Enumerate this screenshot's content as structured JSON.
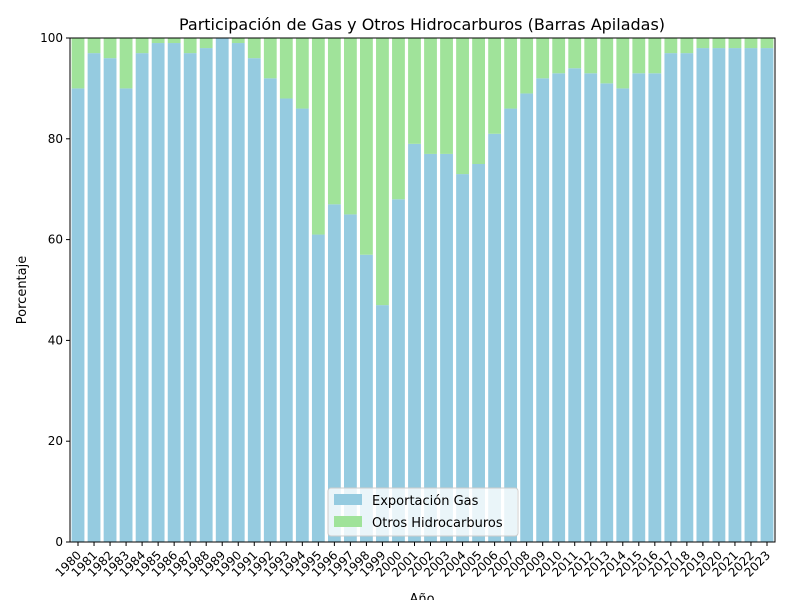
{
  "chart_data": {
    "type": "bar",
    "stacked": true,
    "title": "Participación de Gas y Otros Hidrocarburos (Barras Apiladas)",
    "xlabel": "Año",
    "ylabel": "Porcentaje",
    "ylim": [
      0,
      100
    ],
    "yticks": [
      0,
      20,
      40,
      60,
      80,
      100
    ],
    "grid": false,
    "legend_position": "bottom-center",
    "categories": [
      "1980",
      "1981",
      "1982",
      "1983",
      "1984",
      "1985",
      "1986",
      "1987",
      "1988",
      "1989",
      "1990",
      "1991",
      "1992",
      "1993",
      "1994",
      "1995",
      "1996",
      "1997",
      "1998",
      "1999",
      "2000",
      "2001",
      "2002",
      "2003",
      "2004",
      "2005",
      "2006",
      "2007",
      "2008",
      "2009",
      "2010",
      "2011",
      "2012",
      "2013",
      "2014",
      "2015",
      "2016",
      "2017",
      "2018",
      "2019",
      "2020",
      "2021",
      "2022",
      "2023"
    ],
    "series": [
      {
        "name": "Exportación Gas",
        "color": "#95cbe0",
        "values": [
          90,
          97,
          96,
          90,
          97,
          99,
          99,
          97,
          98,
          100,
          99,
          96,
          92,
          88,
          86,
          61,
          67,
          65,
          57,
          47,
          68,
          79,
          77,
          77,
          73,
          75,
          81,
          86,
          89,
          92,
          93,
          94,
          93,
          91,
          90,
          93,
          93,
          97,
          97,
          98,
          98,
          98,
          98,
          98
        ]
      },
      {
        "name": "Otros Hidrocarburos",
        "color": "#a0e39a",
        "values": [
          10,
          3,
          4,
          10,
          3,
          1,
          1,
          3,
          2,
          0,
          1,
          4,
          8,
          12,
          14,
          39,
          33,
          35,
          43,
          53,
          32,
          21,
          23,
          23,
          27,
          25,
          19,
          14,
          11,
          8,
          7,
          6,
          7,
          9,
          10,
          7,
          7,
          3,
          3,
          2,
          2,
          2,
          2,
          2
        ]
      }
    ]
  }
}
